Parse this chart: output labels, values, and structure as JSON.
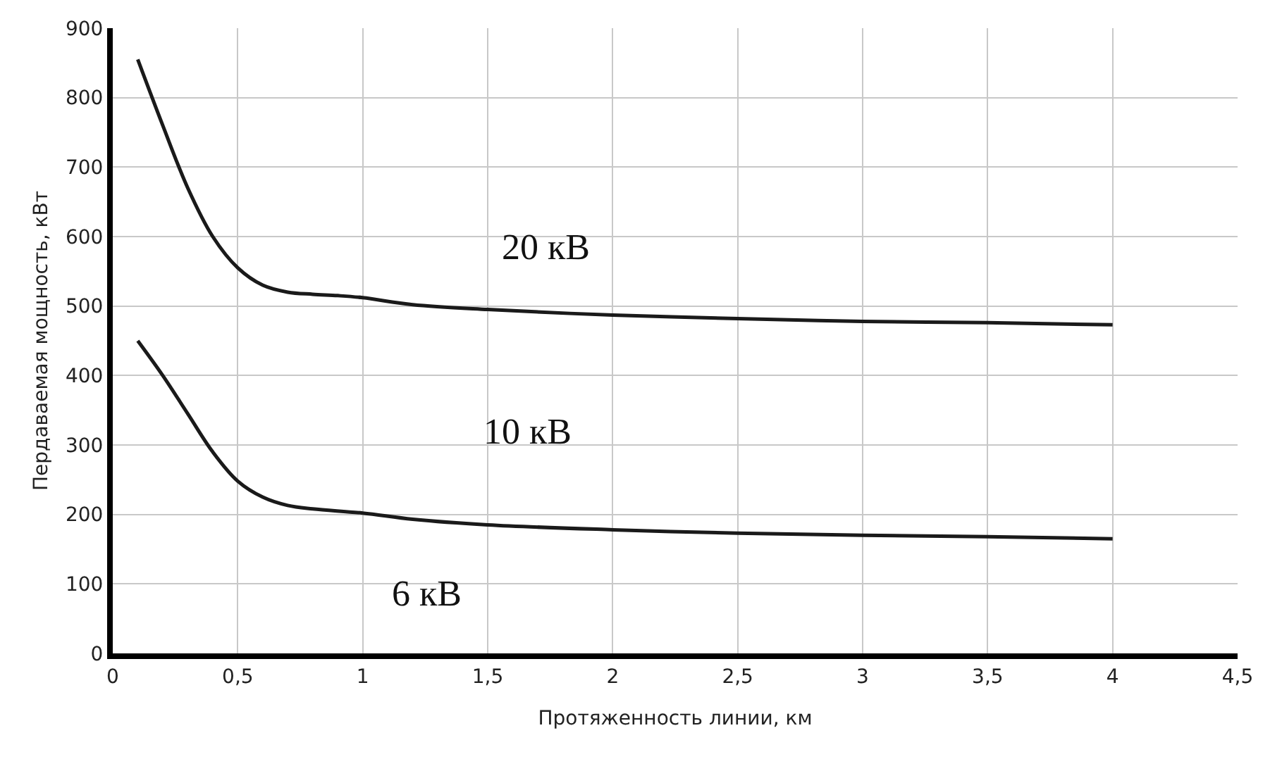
{
  "chart_data": {
    "type": "line",
    "xlabel": "Протяженность линии, км",
    "ylabel": "Пердаваемая мощность, кВт",
    "series": [
      {
        "color": "#1a1a1a",
        "x": [
          0.1,
          0.2,
          0.3,
          0.4,
          0.5,
          0.6,
          0.7,
          0.8,
          0.9,
          1.0,
          1.2,
          1.5,
          2,
          2.5,
          3,
          3.5,
          4
        ],
        "values": [
          855,
          760,
          670,
          600,
          555,
          530,
          520,
          517,
          515,
          512,
          502,
          495,
          487,
          482,
          478,
          476,
          473
        ]
      },
      {
        "color": "#1a1a1a",
        "x": [
          0.1,
          0.2,
          0.3,
          0.4,
          0.5,
          0.6,
          0.7,
          0.8,
          1.0,
          1.2,
          1.5,
          2,
          2.5,
          3,
          3.5,
          4
        ],
        "values": [
          450,
          400,
          345,
          290,
          248,
          225,
          213,
          208,
          202,
          193,
          185,
          178,
          173,
          170,
          168,
          165
        ]
      }
    ],
    "annotations": [
      "20 кВ",
      "10 кВ",
      "6 кВ"
    ],
    "xlim": [
      0,
      4.5
    ],
    "xticks": [
      0,
      {
        "value": 0.5,
        "label": "0,5"
      },
      1,
      {
        "value": 1.5,
        "label": "1,5"
      },
      2,
      {
        "value": 2.5,
        "label": "2,5"
      },
      3,
      {
        "value": 3.5,
        "label": "3,5"
      },
      4,
      {
        "value": 4.5,
        "label": "4,5"
      }
    ],
    "ylim": [
      0,
      900
    ],
    "yticks": [
      0,
      100,
      200,
      300,
      400,
      500,
      600,
      700,
      800,
      900
    ],
    "grid": true,
    "marker": "none",
    "line_style": "solid"
  }
}
